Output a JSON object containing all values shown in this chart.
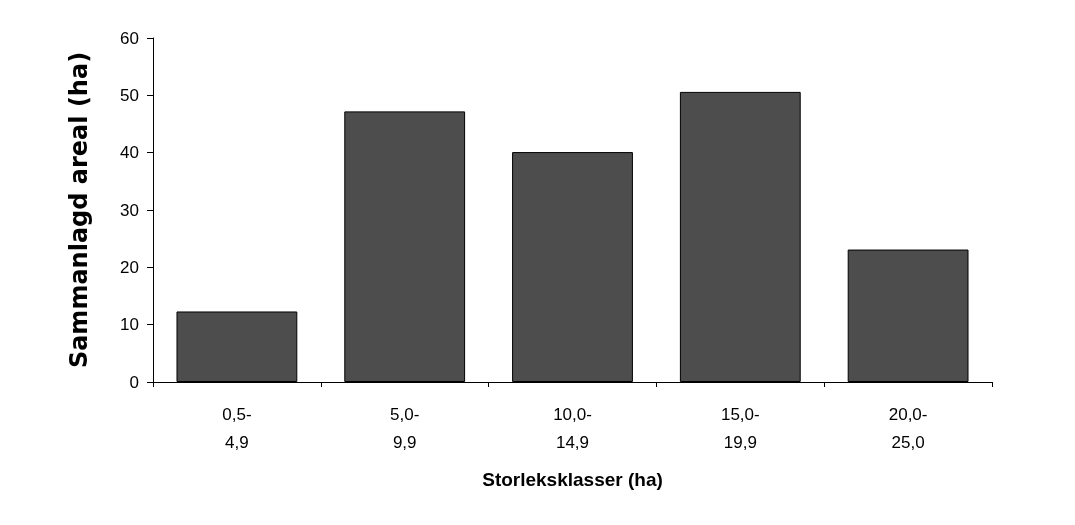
{
  "chart_data": {
    "type": "bar",
    "xlabel": "Storleksklasser (ha)",
    "ylabel": "Sammanlagd areal (ha)",
    "categories": [
      "0,5-\n4,9",
      "5,0-\n9,9",
      "10,0-\n14,9",
      "15,0-\n19,9",
      "20,0-\n25,0"
    ],
    "values": [
      12.3,
      47.2,
      40.1,
      50.6,
      23.1
    ],
    "color": "#4d4d4d",
    "ylim": [
      0,
      60
    ],
    "yticks": [
      0,
      10,
      20,
      30,
      40,
      50,
      60
    ]
  }
}
